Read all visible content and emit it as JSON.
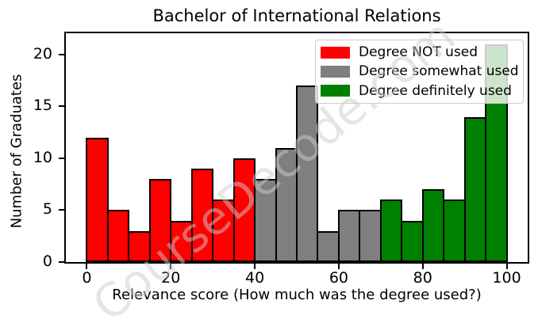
{
  "watermark": {
    "text": "CourseDecode.com"
  },
  "chart_data": {
    "type": "bar",
    "subtype": "histogram",
    "title": "Bachelor of International Relations",
    "xlabel": "Relevance score (How much was the degree used?)",
    "ylabel": "Number of Graduates",
    "xlim": [
      -5,
      105
    ],
    "ylim": [
      0,
      22.05
    ],
    "x_ticks": [
      0,
      20,
      40,
      60,
      80,
      100
    ],
    "y_ticks": [
      0,
      5,
      10,
      15,
      20
    ],
    "bin_width": 5,
    "bar_edge_color": "#000000",
    "grid": false,
    "series": [
      {
        "name": "Degree NOT used",
        "color": "#ff0000",
        "bins": [
          [
            0,
            12
          ],
          [
            5,
            5
          ],
          [
            10,
            3
          ],
          [
            15,
            8
          ],
          [
            20,
            4
          ],
          [
            25,
            9
          ],
          [
            30,
            6
          ],
          [
            35,
            10
          ]
        ]
      },
      {
        "name": "Degree somewhat used",
        "color": "#7f7f7f",
        "bins": [
          [
            40,
            8
          ],
          [
            45,
            11
          ],
          [
            50,
            17
          ],
          [
            55,
            3
          ],
          [
            60,
            5
          ],
          [
            65,
            5
          ]
        ]
      },
      {
        "name": "Degree definitely used",
        "color": "#008000",
        "bins": [
          [
            70,
            6
          ],
          [
            75,
            4
          ],
          [
            80,
            7
          ],
          [
            85,
            6
          ],
          [
            90,
            14
          ],
          [
            95,
            21
          ]
        ]
      }
    ],
    "legend": {
      "position": "upper right",
      "items": [
        {
          "label": "Degree NOT used",
          "color": "#ff0000"
        },
        {
          "label": "Degree somewhat used",
          "color": "#7f7f7f"
        },
        {
          "label": "Degree definitely used",
          "color": "#008000"
        }
      ]
    }
  }
}
